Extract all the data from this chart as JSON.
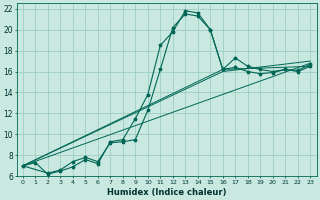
{
  "xlabel": "Humidex (Indice chaleur)",
  "background_color": "#c8e8e0",
  "grid_color": "#9ecec4",
  "line_color": "#006655",
  "xlim": [
    -0.5,
    23.5
  ],
  "ylim": [
    6,
    22.5
  ],
  "xticks": [
    0,
    1,
    2,
    3,
    4,
    5,
    6,
    7,
    8,
    9,
    10,
    11,
    12,
    13,
    14,
    15,
    16,
    17,
    18,
    19,
    20,
    21,
    22,
    23
  ],
  "yticks": [
    6,
    8,
    10,
    12,
    14,
    16,
    18,
    20,
    22
  ],
  "line1_x": [
    0,
    1,
    2,
    3,
    4,
    5,
    6,
    7,
    8,
    9,
    10,
    11,
    12,
    13,
    14,
    15,
    16,
    17,
    18,
    19,
    20,
    21,
    22,
    23
  ],
  "line1_y": [
    7.0,
    7.3,
    6.2,
    6.5,
    6.9,
    7.6,
    7.2,
    9.3,
    9.5,
    11.5,
    13.8,
    18.5,
    19.8,
    21.8,
    21.6,
    20.0,
    16.2,
    17.3,
    16.5,
    16.2,
    16.0,
    16.2,
    16.0,
    16.5
  ],
  "line2_x": [
    0,
    2,
    3,
    4,
    5,
    6,
    7,
    8,
    9,
    10,
    11,
    12,
    13,
    14,
    15,
    16,
    17,
    18,
    19,
    20,
    21,
    22,
    23
  ],
  "line2_y": [
    7.0,
    6.3,
    6.6,
    7.4,
    7.8,
    7.4,
    9.2,
    9.3,
    9.5,
    12.3,
    16.2,
    20.2,
    21.5,
    21.3,
    20.0,
    16.2,
    16.4,
    16.0,
    15.8,
    15.9,
    16.2,
    16.1,
    16.7
  ],
  "line3_x": [
    0,
    23
  ],
  "line3_y": [
    7.0,
    16.8
  ],
  "line4_x": [
    0,
    16,
    23
  ],
  "line4_y": [
    7.0,
    16.2,
    16.5
  ],
  "line5_x": [
    0,
    16,
    23
  ],
  "line5_y": [
    7.0,
    16.0,
    17.0
  ]
}
